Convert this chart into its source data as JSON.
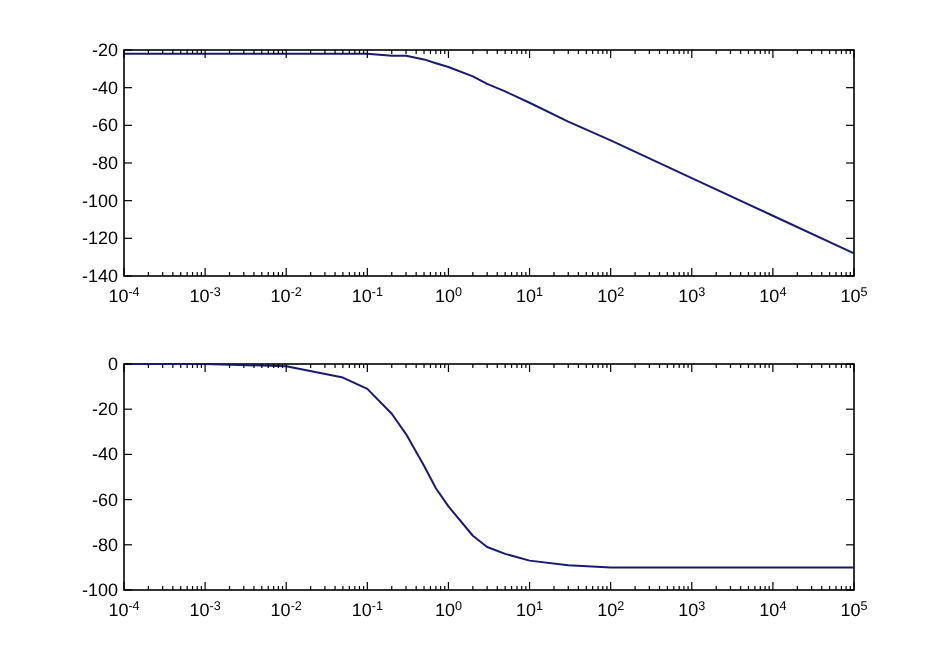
{
  "chart_data": [
    {
      "type": "line",
      "log": "x",
      "grid": false,
      "x": [
        0.0001,
        0.001,
        0.01,
        0.05,
        0.1,
        0.2,
        0.3,
        0.5,
        0.7,
        1,
        2,
        3,
        5,
        10,
        30,
        100,
        1000,
        10000,
        100000
      ],
      "series": [
        {
          "color": "#1a1a6e",
          "values": [
            -22,
            -22,
            -22,
            -22,
            -22,
            -23,
            -23,
            -25,
            -27,
            -29,
            -34,
            -38,
            -42,
            -48,
            -58,
            -68,
            -88,
            -108,
            -128
          ]
        }
      ],
      "xlim": [
        0.0001,
        100000
      ],
      "ylim": [
        -140,
        -20
      ],
      "xticks": [
        {
          "value": 0.0001,
          "label": "10$^{-4}$"
        },
        {
          "value": 0.001,
          "label": "10$^{-3}$"
        },
        {
          "value": 0.01,
          "label": "10$^{-2}$"
        },
        {
          "value": 0.1,
          "label": "10$^{-1}$"
        },
        {
          "value": 1,
          "label": "10$^{0}$"
        },
        {
          "value": 10,
          "label": "10$^{1}$"
        },
        {
          "value": 100,
          "label": "10$^{2}$"
        },
        {
          "value": 1000,
          "label": "10$^{3}$"
        },
        {
          "value": 10000,
          "label": "10$^{4}$"
        },
        {
          "value": 100000,
          "label": "10$^{5}$"
        }
      ],
      "yticks": [
        -140,
        -120,
        -100,
        -80,
        -60,
        -40,
        -20
      ]
    },
    {
      "type": "line",
      "log": "x",
      "grid": false,
      "x": [
        0.0001,
        0.001,
        0.01,
        0.05,
        0.1,
        0.2,
        0.3,
        0.5,
        0.7,
        1,
        2,
        3,
        5,
        10,
        30,
        100,
        1000,
        10000,
        100000
      ],
      "series": [
        {
          "color": "#1a1a6e",
          "values": [
            0,
            0,
            -1,
            -6,
            -11,
            -22,
            -31,
            -45,
            -55,
            -63,
            -76,
            -81,
            -84,
            -87,
            -89,
            -90,
            -90,
            -90,
            -90
          ]
        }
      ],
      "xlim": [
        0.0001,
        100000
      ],
      "ylim": [
        -100,
        0
      ],
      "xticks": [
        {
          "value": 0.0001,
          "label": "10$^{-4}$"
        },
        {
          "value": 0.001,
          "label": "10$^{-3}$"
        },
        {
          "value": 0.01,
          "label": "10$^{-2}$"
        },
        {
          "value": 0.1,
          "label": "10$^{-1}$"
        },
        {
          "value": 1,
          "label": "10$^{0}$"
        },
        {
          "value": 10,
          "label": "10$^{1}$"
        },
        {
          "value": 100,
          "label": "10$^{2}$"
        },
        {
          "value": 1000,
          "label": "10$^{3}$"
        },
        {
          "value": 10000,
          "label": "10$^{4}$"
        },
        {
          "value": 100000,
          "label": "10$^{5}$"
        }
      ],
      "yticks": [
        -100,
        -80,
        -60,
        -40,
        -20,
        0
      ]
    }
  ]
}
